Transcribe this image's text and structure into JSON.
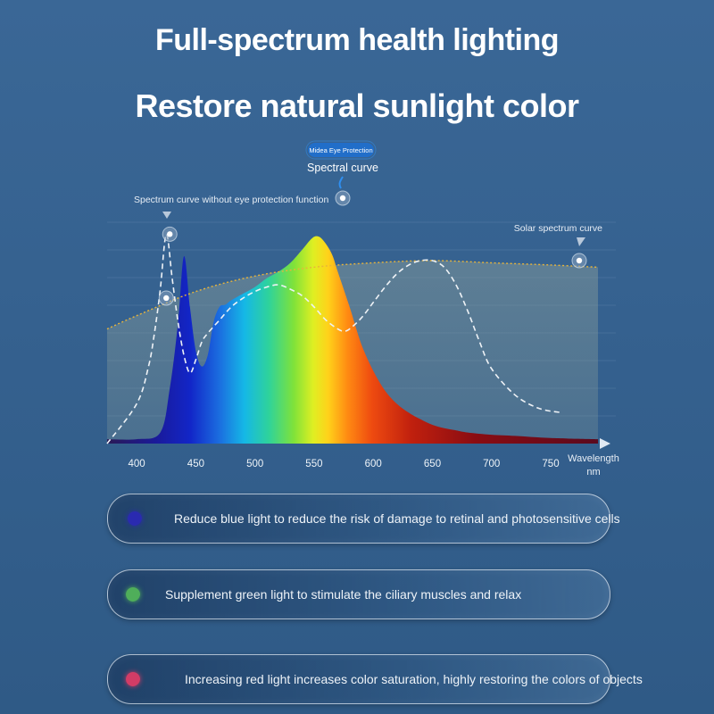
{
  "header": {
    "title": "Full-spectrum health lighting",
    "subtitle": "Restore natural sunlight color"
  },
  "chart_data": {
    "type": "area",
    "title": "",
    "xlabel": "Wavelength nm",
    "xlabel_line1": "Wavelength",
    "xlabel_line2": "nm",
    "ylabel": "",
    "xlim": [
      375,
      790
    ],
    "ylim": [
      0,
      1
    ],
    "x_ticks": [
      400,
      450,
      500,
      550,
      600,
      650,
      700,
      750
    ],
    "grid": true,
    "annotations": {
      "badge": "Midea Eye Protection",
      "spectral_label": "Spectral curve",
      "no_protection_label": "Spectrum curve without eye protection function",
      "solar_label": "Solar spectrum curve"
    },
    "series": [
      {
        "name": "Spectral curve",
        "style": "filled-rainbow",
        "x": [
          375,
          400,
          420,
          428,
          435,
          440,
          445,
          450,
          455,
          460,
          465,
          470,
          475,
          480,
          490,
          500,
          510,
          520,
          530,
          540,
          548,
          553,
          558,
          565,
          570,
          580,
          590,
          600,
          610,
          620,
          630,
          640,
          650,
          660,
          670,
          680,
          700,
          720,
          750,
          790
        ],
        "values": [
          0.02,
          0.02,
          0.05,
          0.25,
          0.55,
          0.85,
          0.62,
          0.42,
          0.35,
          0.4,
          0.55,
          0.62,
          0.63,
          0.65,
          0.68,
          0.71,
          0.75,
          0.78,
          0.82,
          0.88,
          0.93,
          0.94,
          0.92,
          0.86,
          0.78,
          0.62,
          0.45,
          0.33,
          0.24,
          0.18,
          0.14,
          0.11,
          0.085,
          0.07,
          0.06,
          0.05,
          0.04,
          0.035,
          0.025,
          0.02
        ]
      },
      {
        "name": "Spectrum curve without eye protection function",
        "style": "white-dashed",
        "x": [
          375,
          400,
          410,
          415,
          420,
          425,
          430,
          435,
          440,
          445,
          450,
          455,
          460,
          470,
          480,
          490,
          500,
          510,
          520,
          530,
          540,
          550,
          560,
          570,
          575,
          580,
          590,
          600,
          610,
          620,
          630,
          640,
          650,
          660,
          670,
          680,
          690,
          700,
          720,
          740,
          760
        ],
        "values": [
          0.0,
          0.18,
          0.35,
          0.5,
          0.7,
          0.95,
          0.75,
          0.55,
          0.4,
          0.32,
          0.38,
          0.46,
          0.5,
          0.56,
          0.62,
          0.66,
          0.69,
          0.71,
          0.72,
          0.7,
          0.67,
          0.62,
          0.56,
          0.52,
          0.51,
          0.52,
          0.57,
          0.64,
          0.71,
          0.77,
          0.81,
          0.83,
          0.83,
          0.8,
          0.72,
          0.6,
          0.46,
          0.34,
          0.22,
          0.16,
          0.14
        ]
      },
      {
        "name": "Solar spectrum curve",
        "style": "orange-dotted-fill",
        "x": [
          375,
          400,
          450,
          500,
          550,
          600,
          650,
          700,
          750,
          790
        ],
        "values": [
          0.52,
          0.58,
          0.69,
          0.76,
          0.8,
          0.82,
          0.83,
          0.82,
          0.81,
          0.8
        ]
      }
    ]
  },
  "features": [
    {
      "text": "Reduce blue light to reduce the risk of damage to retinal and photosensitive cells",
      "dot_color": "#2a2ab0"
    },
    {
      "text": "Supplement green light to stimulate the ciliary muscles and relax",
      "dot_color": "#4fae5a"
    },
    {
      "text": "Increasing red light increases color saturation, highly restoring the colors of objects",
      "dot_color": "#d23c66"
    }
  ]
}
